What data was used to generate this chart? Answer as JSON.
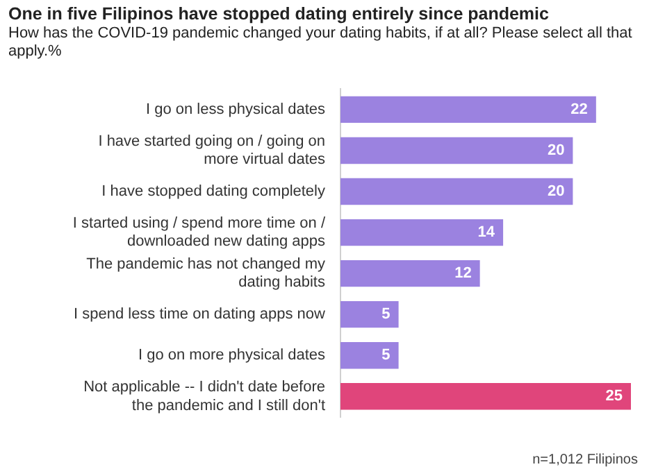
{
  "chart_data": {
    "type": "bar",
    "orientation": "horizontal",
    "title": "One in five Filipinos have stopped dating entirely since pandemic",
    "subtitle": "How has the COVID-19 pandemic changed your dating habits, if at all? Please select all that apply.%",
    "categories": [
      "I go on less physical dates",
      "I have started going on / going on more virtual dates",
      "I have stopped dating completely",
      "I started using / spend more time on / downloaded new dating apps",
      "The pandemic has not changed my dating habits",
      "I spend less time on dating apps now",
      "I go on more physical dates",
      "Not applicable -- I didn't date before the pandemic and I still don't"
    ],
    "values": [
      22,
      20,
      20,
      14,
      12,
      5,
      5,
      25
    ],
    "colors": [
      "#9b82e0",
      "#9b82e0",
      "#9b82e0",
      "#9b82e0",
      "#9b82e0",
      "#9b82e0",
      "#9b82e0",
      "#e0457b"
    ],
    "data_labels": true,
    "legend": false,
    "annotations": [
      "n=1,012 Filipinos"
    ]
  }
}
